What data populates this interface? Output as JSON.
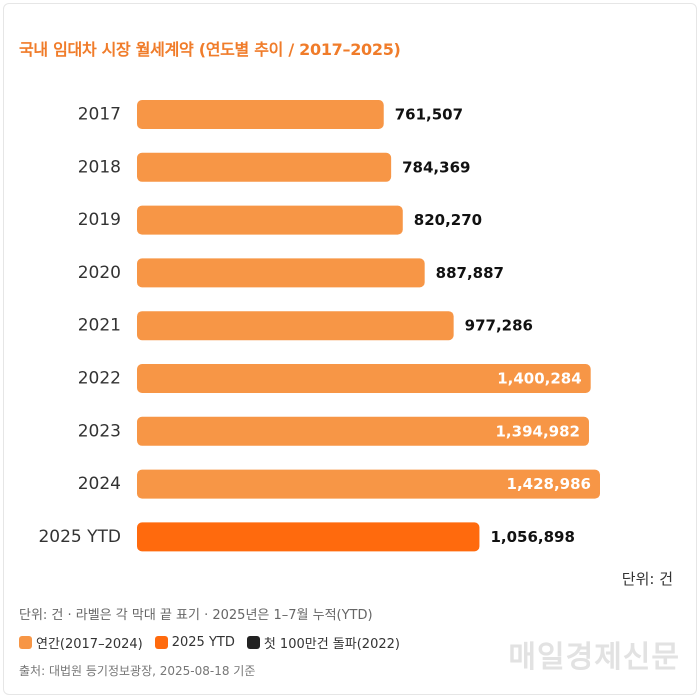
{
  "title": "국내 임대차 시장 월세계약 (연도별 추이 / 2017–2025)",
  "unit_label": "단위: 건",
  "footnote": "단위: 건 · 라벨은 각 막대 끝 표기 · 2025년은 1–7월 누적(YTD)",
  "legend": [
    {
      "label": "연간(2017–2024)",
      "color": "#f79646"
    },
    {
      "label": "2025 YTD",
      "color": "#ff6a0d"
    },
    {
      "label": "첫 100만건 돌파(2022)",
      "color": "#222222"
    }
  ],
  "source": "출처: 대법원 등기정보광장, 2025-08-18 기준",
  "watermark": "매일경제신문",
  "chart_data": {
    "type": "bar",
    "orientation": "horizontal",
    "categories": [
      "2017",
      "2018",
      "2019",
      "2020",
      "2021",
      "2022",
      "2023",
      "2024",
      "2025 YTD"
    ],
    "values": [
      761507,
      784369,
      820270,
      887887,
      977286,
      1400284,
      1394982,
      1428986,
      1056898
    ],
    "value_labels": [
      "761,507",
      "784,369",
      "820,270",
      "887,887",
      "977,286",
      "1,400,284",
      "1,394,982",
      "1,428,986",
      "1,056,898"
    ],
    "label_inside": [
      false,
      false,
      false,
      false,
      false,
      true,
      true,
      true,
      false
    ],
    "bar_colors": [
      "#f79646",
      "#f79646",
      "#f79646",
      "#f79646",
      "#f79646",
      "#f79646",
      "#f79646",
      "#f79646",
      "#ff6a0d"
    ],
    "xlim": [
      0,
      1500000
    ],
    "grid": false
  }
}
